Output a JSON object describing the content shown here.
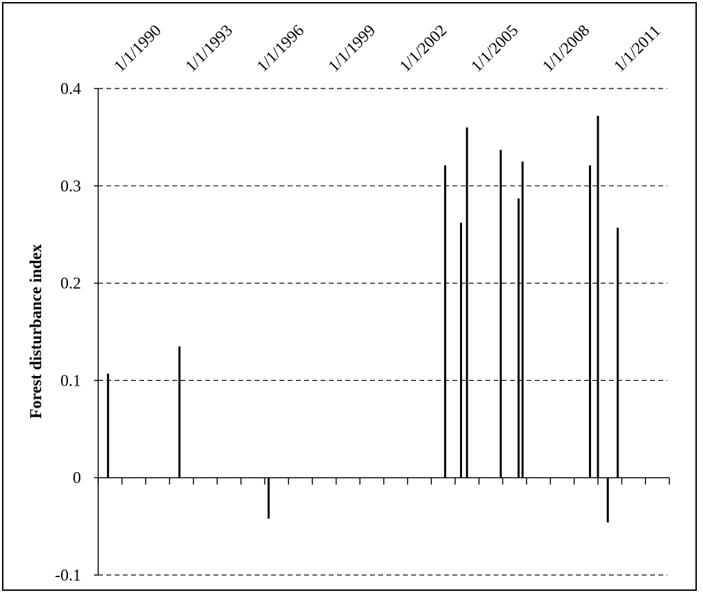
{
  "chart_data": {
    "type": "bar",
    "title": "",
    "xlabel": "",
    "ylabel": "Forest disturbance index",
    "ylim": [
      -0.1,
      0.4
    ],
    "yticks": [
      -0.1,
      0,
      0.1,
      0.2,
      0.3,
      0.4
    ],
    "ytick_labels": [
      "-0.1",
      "0",
      "0.1",
      "0.2",
      "0.3",
      "0.4"
    ],
    "xlim": [
      "1989-01-01",
      "2013-01-01"
    ],
    "xticks": [
      "1990-01-01",
      "1993-01-01",
      "1996-01-01",
      "1999-01-01",
      "2002-01-01",
      "2005-01-01",
      "2008-01-01",
      "2011-01-01"
    ],
    "xtick_labels": [
      "1/1/1990",
      "1/1/1993",
      "1/1/1996",
      "1/1/1999",
      "1/1/2002",
      "1/1/2005",
      "1/1/2008",
      "1/1/2011"
    ],
    "grid": "horizontal dashed",
    "color": "#000000",
    "points": [
      {
        "date": "1989-06-01",
        "value": 0.107
      },
      {
        "date": "1992-06-01",
        "value": 0.135
      },
      {
        "date": "1996-03-01",
        "value": -0.042
      },
      {
        "date": "2003-08-01",
        "value": 0.321
      },
      {
        "date": "2004-04-01",
        "value": 0.262
      },
      {
        "date": "2004-07-01",
        "value": 0.36
      },
      {
        "date": "2005-12-01",
        "value": 0.337
      },
      {
        "date": "2006-09-01",
        "value": 0.287
      },
      {
        "date": "2006-11-01",
        "value": 0.325
      },
      {
        "date": "2009-09-01",
        "value": 0.321
      },
      {
        "date": "2010-01-01",
        "value": 0.372
      },
      {
        "date": "2010-06-01",
        "value": -0.046
      },
      {
        "date": "2010-11-01",
        "value": 0.257
      }
    ]
  }
}
